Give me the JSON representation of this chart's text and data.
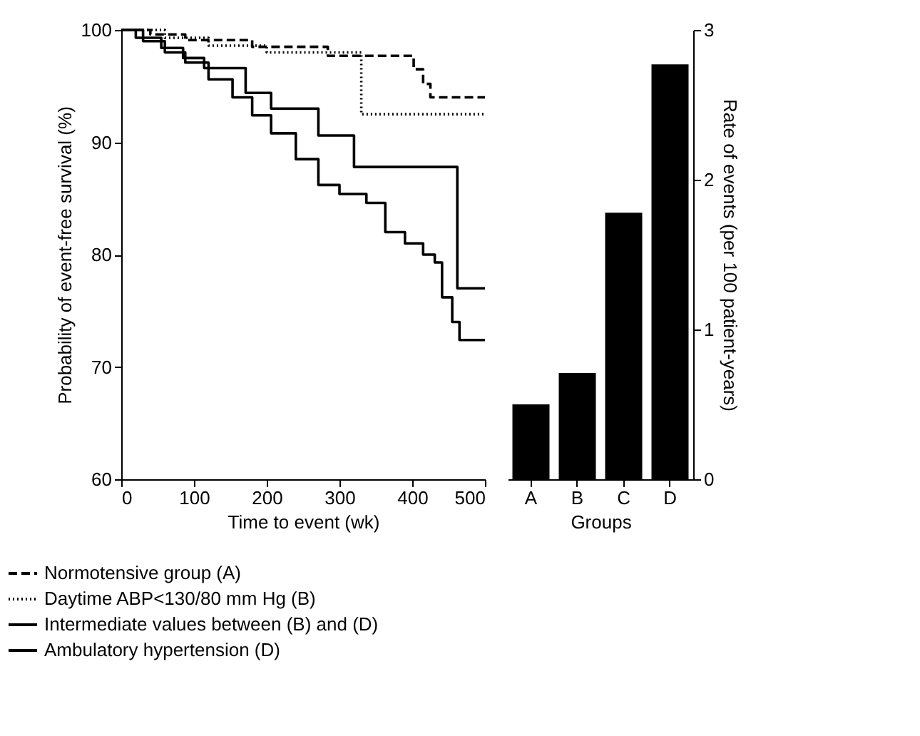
{
  "chart_data": [
    {
      "type": "step",
      "xlabel": "Time to event (wk)",
      "ylabel": "Probability of event-free survival (%)",
      "xlim": [
        0,
        500
      ],
      "xticks": [
        0,
        100,
        200,
        300,
        400,
        500
      ],
      "ylim": [
        60,
        100
      ],
      "yticks": [
        60,
        70,
        80,
        90,
        100
      ],
      "grid": false,
      "legend": "bottom left",
      "marker": "none",
      "series": [
        {
          "name": "Normotensive group (A)",
          "color": "#000000",
          "line_style": "dashed",
          "x": [
            0,
            40,
            88,
            180,
            284,
            402,
            415,
            425,
            500
          ],
          "values": [
            100,
            99.6,
            99.1,
            98.5,
            97.7,
            96.5,
            95.2,
            94,
            94
          ]
        },
        {
          "name": "Daytime ABP<130/80 mm Hg (B)",
          "color": "#000000",
          "line_style": "dotted",
          "x": [
            0,
            60,
            120,
            200,
            330,
            500
          ],
          "values": [
            100,
            99.3,
            98.6,
            98,
            92.5,
            92.5
          ]
        },
        {
          "name": "Intermediate values between (B) and (D)",
          "color": "#000000",
          "line_style": "solid",
          "x": [
            0,
            20,
            55,
            85,
            114,
            171,
            206,
            271,
            320,
            462,
            500
          ],
          "values": [
            100,
            99.3,
            98.4,
            97.5,
            96.6,
            94.4,
            93,
            90.6,
            87.8,
            77,
            77
          ]
        },
        {
          "name": "Ambulatory hypertension (D)",
          "color": "#000000",
          "line_style": "solid",
          "x": [
            0,
            30,
            60,
            88,
            120,
            153,
            180,
            206,
            240,
            271,
            300,
            337,
            363,
            390,
            415,
            431,
            441,
            455,
            465,
            500
          ],
          "values": [
            100,
            99,
            98,
            97.1,
            95.6,
            94,
            92.4,
            90.8,
            88.5,
            86.2,
            85.4,
            84.6,
            82,
            81,
            80,
            79.3,
            76.2,
            74,
            72.4,
            72.4
          ]
        }
      ]
    },
    {
      "type": "bar",
      "xlabel": "Groups",
      "ylabel": "Rate of events (per 100 patient-years)",
      "categories": [
        "A",
        "B",
        "C",
        "D"
      ],
      "values": [
        0.5,
        0.71,
        1.78,
        2.77
      ],
      "color": "#000000",
      "ylim": [
        0,
        3
      ],
      "yticks": [
        0,
        1,
        2,
        3
      ],
      "grid": false
    }
  ]
}
